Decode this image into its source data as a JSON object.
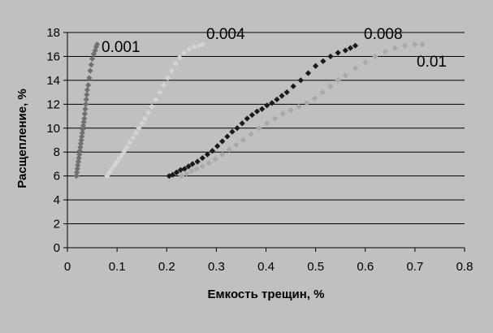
{
  "chart_data": {
    "type": "scatter",
    "xlabel": "Емкость трещин, %",
    "ylabel": "Расщепление, %",
    "xlim": [
      0,
      0.8
    ],
    "ylim": [
      0,
      18
    ],
    "x_ticks": [
      "0",
      "0.1",
      "0.2",
      "0.3",
      "0.4",
      "0.5",
      "0.6",
      "0.7",
      "0.8"
    ],
    "y_ticks": [
      "0",
      "2",
      "4",
      "6",
      "8",
      "10",
      "12",
      "14",
      "16",
      "18"
    ],
    "y_gridlines": true,
    "series": [
      {
        "name": "0.001",
        "color": "#707070",
        "points": [
          [
            0.018,
            6.0
          ],
          [
            0.019,
            6.3
          ],
          [
            0.02,
            6.6
          ],
          [
            0.021,
            6.9
          ],
          [
            0.022,
            7.2
          ],
          [
            0.023,
            7.5
          ],
          [
            0.024,
            7.8
          ],
          [
            0.025,
            8.1
          ],
          [
            0.026,
            8.4
          ],
          [
            0.027,
            8.7
          ],
          [
            0.028,
            9.0
          ],
          [
            0.029,
            9.3
          ],
          [
            0.03,
            9.6
          ],
          [
            0.031,
            9.9
          ],
          [
            0.032,
            10.2
          ],
          [
            0.033,
            10.5
          ],
          [
            0.034,
            10.8
          ],
          [
            0.035,
            11.2
          ],
          [
            0.036,
            11.6
          ],
          [
            0.037,
            12.0
          ],
          [
            0.038,
            12.4
          ],
          [
            0.039,
            12.8
          ],
          [
            0.04,
            13.2
          ],
          [
            0.042,
            13.6
          ],
          [
            0.044,
            14.2
          ],
          [
            0.046,
            14.8
          ],
          [
            0.048,
            15.3
          ],
          [
            0.05,
            15.8
          ],
          [
            0.053,
            16.2
          ],
          [
            0.056,
            16.5
          ],
          [
            0.058,
            16.8
          ],
          [
            0.06,
            17.0
          ]
        ]
      },
      {
        "name": "0.004",
        "color": "#d4d4d4",
        "points": [
          [
            0.08,
            6.0
          ],
          [
            0.085,
            6.3
          ],
          [
            0.09,
            6.6
          ],
          [
            0.095,
            6.9
          ],
          [
            0.1,
            7.2
          ],
          [
            0.105,
            7.5
          ],
          [
            0.11,
            7.8
          ],
          [
            0.115,
            8.1
          ],
          [
            0.12,
            8.4
          ],
          [
            0.126,
            8.8
          ],
          [
            0.132,
            9.2
          ],
          [
            0.138,
            9.6
          ],
          [
            0.144,
            10.0
          ],
          [
            0.15,
            10.4
          ],
          [
            0.156,
            10.8
          ],
          [
            0.163,
            11.3
          ],
          [
            0.17,
            11.8
          ],
          [
            0.178,
            12.4
          ],
          [
            0.186,
            13.0
          ],
          [
            0.194,
            13.6
          ],
          [
            0.202,
            14.2
          ],
          [
            0.21,
            14.8
          ],
          [
            0.218,
            15.4
          ],
          [
            0.226,
            15.9
          ],
          [
            0.235,
            16.3
          ],
          [
            0.245,
            16.6
          ],
          [
            0.255,
            16.8
          ],
          [
            0.265,
            16.9
          ],
          [
            0.272,
            17.0
          ]
        ]
      },
      {
        "name": "0.008",
        "color": "#1a1a1a",
        "points": [
          [
            0.205,
            6.0
          ],
          [
            0.212,
            6.1
          ],
          [
            0.22,
            6.3
          ],
          [
            0.228,
            6.5
          ],
          [
            0.236,
            6.6
          ],
          [
            0.244,
            6.8
          ],
          [
            0.252,
            7.0
          ],
          [
            0.262,
            7.2
          ],
          [
            0.272,
            7.5
          ],
          [
            0.282,
            7.8
          ],
          [
            0.292,
            8.1
          ],
          [
            0.302,
            8.5
          ],
          [
            0.312,
            8.9
          ],
          [
            0.322,
            9.3
          ],
          [
            0.332,
            9.7
          ],
          [
            0.342,
            10.0
          ],
          [
            0.352,
            10.4
          ],
          [
            0.362,
            10.8
          ],
          [
            0.372,
            11.1
          ],
          [
            0.382,
            11.4
          ],
          [
            0.392,
            11.6
          ],
          [
            0.402,
            11.9
          ],
          [
            0.412,
            12.1
          ],
          [
            0.422,
            12.4
          ],
          [
            0.432,
            12.7
          ],
          [
            0.442,
            13.0
          ],
          [
            0.455,
            13.5
          ],
          [
            0.47,
            14.0
          ],
          [
            0.485,
            14.6
          ],
          [
            0.5,
            15.2
          ],
          [
            0.515,
            15.6
          ],
          [
            0.53,
            16.0
          ],
          [
            0.545,
            16.3
          ],
          [
            0.56,
            16.5
          ],
          [
            0.57,
            16.7
          ],
          [
            0.58,
            16.9
          ]
        ]
      },
      {
        "name": "0.01",
        "color": "#a8a8a8",
        "points": [
          [
            0.23,
            6.0
          ],
          [
            0.24,
            6.2
          ],
          [
            0.25,
            6.4
          ],
          [
            0.26,
            6.6
          ],
          [
            0.272,
            6.8
          ],
          [
            0.285,
            7.1
          ],
          [
            0.298,
            7.4
          ],
          [
            0.312,
            7.8
          ],
          [
            0.326,
            8.2
          ],
          [
            0.34,
            8.6
          ],
          [
            0.354,
            9.0
          ],
          [
            0.37,
            9.5
          ],
          [
            0.386,
            10.0
          ],
          [
            0.402,
            10.4
          ],
          [
            0.418,
            10.8
          ],
          [
            0.434,
            11.2
          ],
          [
            0.45,
            11.5
          ],
          [
            0.466,
            11.8
          ],
          [
            0.482,
            12.1
          ],
          [
            0.498,
            12.5
          ],
          [
            0.514,
            13.0
          ],
          [
            0.53,
            13.5
          ],
          [
            0.545,
            14.0
          ],
          [
            0.56,
            14.4
          ],
          [
            0.58,
            15.0
          ],
          [
            0.6,
            15.5
          ],
          [
            0.62,
            16.0
          ],
          [
            0.64,
            16.4
          ],
          [
            0.66,
            16.7
          ],
          [
            0.68,
            16.9
          ],
          [
            0.7,
            17.0
          ],
          [
            0.715,
            17.0
          ]
        ]
      }
    ]
  }
}
